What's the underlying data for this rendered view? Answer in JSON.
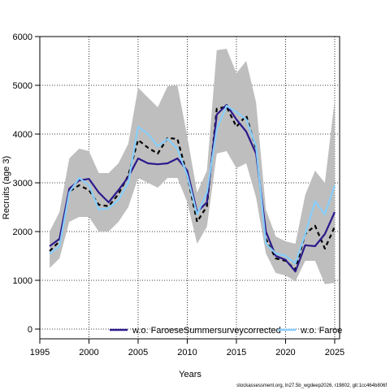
{
  "chart_data": {
    "type": "line",
    "title": "",
    "xlabel": "Years",
    "ylabel": "Recruits (age 3)",
    "xlim": [
      1995,
      2025.5
    ],
    "ylim": [
      -200,
      6000
    ],
    "xticks": [
      1995,
      2000,
      2005,
      2010,
      2015,
      2020,
      2025
    ],
    "yticks": [
      0,
      1000,
      2000,
      3000,
      4000,
      5000,
      6000
    ],
    "grid": true,
    "legend_position": "bottom",
    "x": [
      1996,
      1997,
      1998,
      1999,
      2000,
      2001,
      2002,
      2003,
      2004,
      2005,
      2006,
      2007,
      2008,
      2009,
      2010,
      2011,
      2012,
      2013,
      2014,
      2015,
      2016,
      2017,
      2018,
      2019,
      2020,
      2021,
      2022,
      2023,
      2024,
      2025
    ],
    "band": {
      "color": "#bebebe",
      "lower": [
        1250,
        1450,
        2200,
        2300,
        2300,
        2000,
        2000,
        2200,
        2500,
        3100,
        3000,
        2900,
        3100,
        3100,
        2600,
        1750,
        2100,
        3600,
        3650,
        3300,
        3400,
        2700,
        1550,
        1150,
        1100,
        980,
        1400,
        1400,
        920,
        950
      ],
      "upper": [
        2000,
        2400,
        3500,
        3700,
        3650,
        3200,
        3200,
        3400,
        3800,
        4950,
        4750,
        4550,
        4980,
        5000,
        3950,
        2800,
        3250,
        5720,
        5750,
        5250,
        5500,
        4650,
        2450,
        1900,
        1800,
        1750,
        2750,
        3250,
        3000,
        4700
      ]
    },
    "series": [
      {
        "name": "",
        "color": "#000000",
        "dash": "dashed",
        "values": [
          1600,
          1800,
          2820,
          2950,
          2850,
          2550,
          2520,
          2770,
          3150,
          3880,
          3720,
          3600,
          3920,
          3900,
          3150,
          2200,
          2520,
          4520,
          4560,
          4150,
          4380,
          3700,
          1850,
          1450,
          1400,
          1220,
          1950,
          2120,
          1650,
          2100
        ]
      },
      {
        "name": "w.o. FaroeseSummersurveycorrected",
        "color": "#2c1a8c",
        "dash": "solid",
        "values": [
          1700,
          1850,
          2880,
          3050,
          3080,
          2800,
          2600,
          2850,
          3120,
          3500,
          3400,
          3380,
          3400,
          3500,
          3250,
          2400,
          2600,
          4400,
          4600,
          4300,
          4050,
          3600,
          2000,
          1500,
          1420,
          1180,
          1720,
          1700,
          1950,
          2400
        ]
      },
      {
        "name": "w.o. Faroe",
        "color": "#87cefa",
        "dash": "solid",
        "values": [
          1550,
          1700,
          2800,
          3100,
          2950,
          2450,
          2480,
          2650,
          3000,
          4150,
          4000,
          3750,
          3900,
          3700,
          3150,
          2350,
          2800,
          4100,
          4580,
          4450,
          4300,
          3750,
          1750,
          1550,
          1500,
          1350,
          1950,
          2620,
          2350,
          2950
        ]
      }
    ]
  },
  "footer_text": "stockassessment.org, ln27.5b_wgdeep2026, r19802, git:1cc464b806f"
}
